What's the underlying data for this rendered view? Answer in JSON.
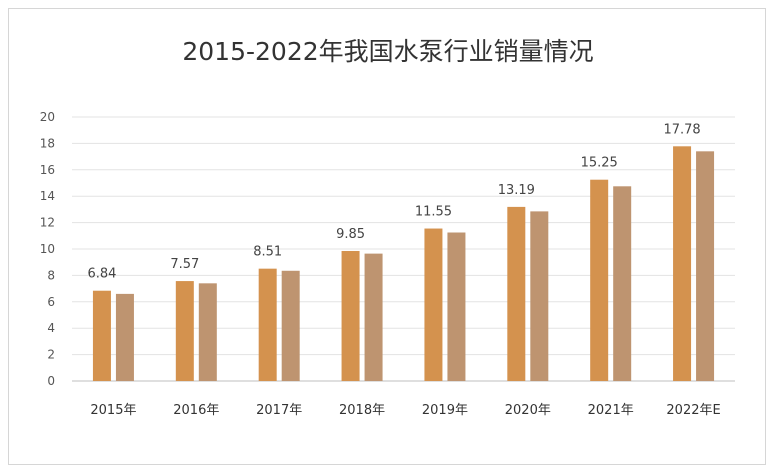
{
  "chart_data": {
    "type": "bar",
    "title": "2015-2022年我国水泵行业销量情况",
    "categories": [
      "2015年",
      "2016年",
      "2017年",
      "2018年",
      "2019年",
      "2020年",
      "2021年",
      "2022年E"
    ],
    "series": [
      {
        "values": [
          6.84,
          7.57,
          8.51,
          9.85,
          11.55,
          13.19,
          15.25,
          17.78
        ],
        "color": "#D4924E"
      },
      {
        "values": [
          6.6,
          7.4,
          8.35,
          9.65,
          11.25,
          12.85,
          14.75,
          17.4
        ],
        "color": "#BE9470"
      }
    ],
    "data_labels": [
      "6.84",
      "7.57",
      "8.51",
      "9.85",
      "11.55",
      "13.19",
      "15.25",
      "17.78"
    ],
    "yticks": [
      "0",
      "2",
      "4",
      "6",
      "8",
      "10",
      "12",
      "14",
      "16",
      "18",
      "20"
    ],
    "ylim": [
      0,
      20
    ],
    "grid": true,
    "legend": "none"
  }
}
